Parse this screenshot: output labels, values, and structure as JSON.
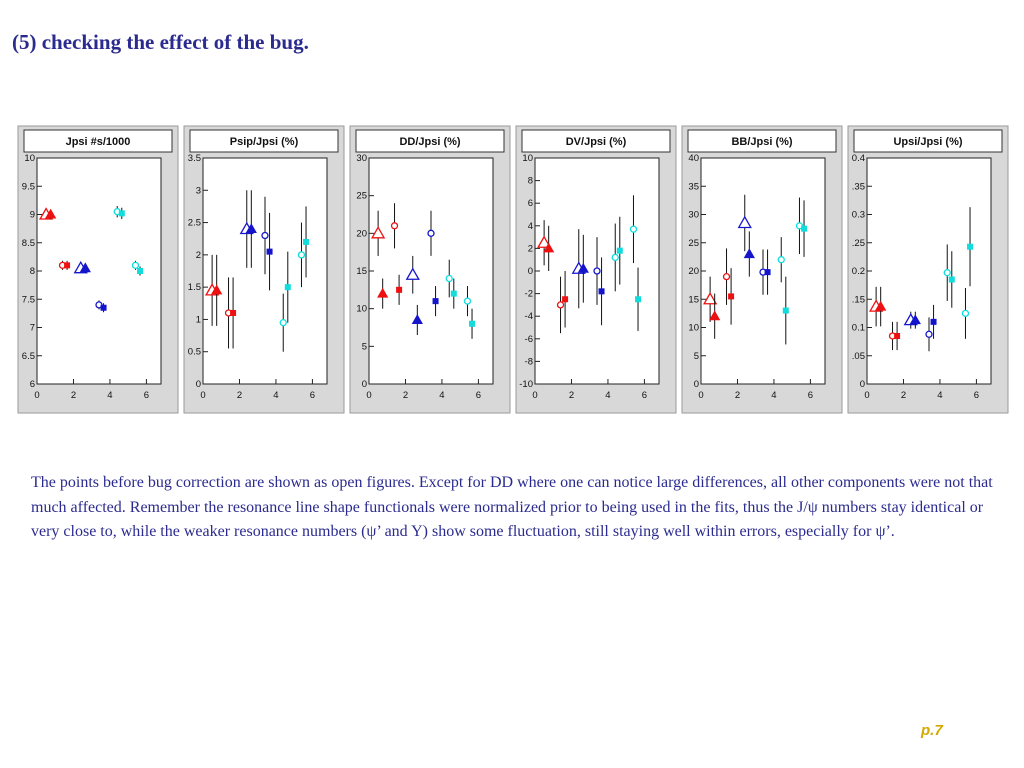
{
  "slide": {
    "title": "(5) checking the effect of the bug.",
    "paragraph": "The points before bug correction are shown as open figures. Except for DD where one can notice large differences, all other components were not that much affected. Remember the resonance line shape functionals were normalized prior to being used in the fits, thus the J/ψ numbers stay identical or very close to, while the weaker resonance numbers (ψ’ and Y) show some fluctuation, still staying well within errors, especially for ψ’.",
    "page_number": "p.7"
  },
  "colors": {
    "text": "#2b2b8f",
    "page_number": "#d4a800",
    "red": "#ee1111",
    "blue": "#1515cc",
    "cyan": "#11dddd",
    "frame_bg": "#d8d8d8"
  },
  "chart_data": [
    {
      "type": "scatter",
      "title": "Jpsi #s/1000",
      "xlim": [
        0,
        6.8
      ],
      "ylim": [
        6,
        10
      ],
      "xticks": [
        "0",
        "2",
        "4",
        "6"
      ],
      "yticks": [
        "6",
        "6.5",
        "7",
        "7.5",
        "8",
        "8.5",
        "9",
        "9.5",
        "10"
      ],
      "ytick_values": [
        6,
        6.5,
        7,
        7.5,
        8,
        8.5,
        9,
        9.5,
        10
      ],
      "points": [
        {
          "x": 0.5,
          "y": 9.0,
          "err": 0.08,
          "color": "red",
          "shape": "triangle",
          "open": true
        },
        {
          "x": 0.75,
          "y": 9.0,
          "err": 0.08,
          "color": "red",
          "shape": "triangle",
          "open": false
        },
        {
          "x": 1.4,
          "y": 8.1,
          "err": 0.08,
          "color": "red",
          "shape": "circle",
          "open": true
        },
        {
          "x": 1.65,
          "y": 8.1,
          "err": 0.08,
          "color": "red",
          "shape": "square",
          "open": false
        },
        {
          "x": 2.4,
          "y": 8.05,
          "err": 0.08,
          "color": "blue",
          "shape": "triangle",
          "open": true
        },
        {
          "x": 2.65,
          "y": 8.05,
          "err": 0.08,
          "color": "blue",
          "shape": "triangle",
          "open": false
        },
        {
          "x": 3.4,
          "y": 7.4,
          "err": 0.08,
          "color": "blue",
          "shape": "circle",
          "open": true
        },
        {
          "x": 3.65,
          "y": 7.35,
          "err": 0.08,
          "color": "blue",
          "shape": "square",
          "open": false
        },
        {
          "x": 4.4,
          "y": 9.05,
          "err": 0.1,
          "color": "cyan",
          "shape": "circle",
          "open": true
        },
        {
          "x": 4.65,
          "y": 9.02,
          "err": 0.1,
          "color": "cyan",
          "shape": "square",
          "open": false
        },
        {
          "x": 5.4,
          "y": 8.1,
          "err": 0.08,
          "color": "cyan",
          "shape": "circle",
          "open": true
        },
        {
          "x": 5.65,
          "y": 8.0,
          "err": 0.08,
          "color": "cyan",
          "shape": "square",
          "open": false
        }
      ]
    },
    {
      "type": "scatter",
      "title": "Psip/Jpsi (%)",
      "xlim": [
        0,
        6.8
      ],
      "ylim": [
        0,
        3.5
      ],
      "xticks": [
        "0",
        "2",
        "4",
        "6"
      ],
      "yticks": [
        "0",
        "0.5",
        "1",
        "1.5",
        "2",
        "2.5",
        "3",
        "3.5"
      ],
      "ytick_values": [
        0,
        0.5,
        1,
        1.5,
        2,
        2.5,
        3,
        3.5
      ],
      "points": [
        {
          "x": 0.5,
          "y": 1.45,
          "err": 0.55,
          "color": "red",
          "shape": "triangle",
          "open": true
        },
        {
          "x": 0.75,
          "y": 1.45,
          "err": 0.55,
          "color": "red",
          "shape": "triangle",
          "open": false
        },
        {
          "x": 1.4,
          "y": 1.1,
          "err": 0.55,
          "color": "red",
          "shape": "circle",
          "open": true
        },
        {
          "x": 1.65,
          "y": 1.1,
          "err": 0.55,
          "color": "red",
          "shape": "square",
          "open": false
        },
        {
          "x": 2.4,
          "y": 2.4,
          "err": 0.6,
          "color": "blue",
          "shape": "triangle",
          "open": true
        },
        {
          "x": 2.65,
          "y": 2.4,
          "err": 0.6,
          "color": "blue",
          "shape": "triangle",
          "open": false
        },
        {
          "x": 3.4,
          "y": 2.3,
          "err": 0.6,
          "color": "blue",
          "shape": "circle",
          "open": true
        },
        {
          "x": 3.65,
          "y": 2.05,
          "err": 0.6,
          "color": "blue",
          "shape": "square",
          "open": false
        },
        {
          "x": 4.4,
          "y": 0.95,
          "err": 0.45,
          "color": "cyan",
          "shape": "circle",
          "open": true
        },
        {
          "x": 4.65,
          "y": 1.5,
          "err": 0.55,
          "color": "cyan",
          "shape": "square",
          "open": false
        },
        {
          "x": 5.4,
          "y": 2.0,
          "err": 0.5,
          "color": "cyan",
          "shape": "circle",
          "open": true
        },
        {
          "x": 5.65,
          "y": 2.2,
          "err": 0.55,
          "color": "cyan",
          "shape": "square",
          "open": false
        }
      ]
    },
    {
      "type": "scatter",
      "title": "DD/Jpsi (%)",
      "xlim": [
        0,
        6.8
      ],
      "ylim": [
        0,
        30
      ],
      "xticks": [
        "0",
        "2",
        "4",
        "6"
      ],
      "yticks": [
        "0",
        "5",
        "10",
        "15",
        "20",
        "25",
        "30"
      ],
      "ytick_values": [
        0,
        5,
        10,
        15,
        20,
        25,
        30
      ],
      "points": [
        {
          "x": 0.5,
          "y": 20.0,
          "err": 3.0,
          "color": "red",
          "shape": "triangle",
          "open": true
        },
        {
          "x": 0.75,
          "y": 12.0,
          "err": 2.0,
          "color": "red",
          "shape": "triangle",
          "open": false
        },
        {
          "x": 1.4,
          "y": 21.0,
          "err": 3.0,
          "color": "red",
          "shape": "circle",
          "open": true
        },
        {
          "x": 1.65,
          "y": 12.5,
          "err": 2.0,
          "color": "red",
          "shape": "square",
          "open": false
        },
        {
          "x": 2.4,
          "y": 14.5,
          "err": 2.5,
          "color": "blue",
          "shape": "triangle",
          "open": true
        },
        {
          "x": 2.65,
          "y": 8.5,
          "err": 2.0,
          "color": "blue",
          "shape": "triangle",
          "open": false
        },
        {
          "x": 3.4,
          "y": 20.0,
          "err": 3.0,
          "color": "blue",
          "shape": "circle",
          "open": true
        },
        {
          "x": 3.65,
          "y": 11.0,
          "err": 2.0,
          "color": "blue",
          "shape": "square",
          "open": false
        },
        {
          "x": 4.4,
          "y": 14.0,
          "err": 2.5,
          "color": "cyan",
          "shape": "circle",
          "open": true
        },
        {
          "x": 4.65,
          "y": 12.0,
          "err": 2.0,
          "color": "cyan",
          "shape": "square",
          "open": false
        },
        {
          "x": 5.4,
          "y": 11.0,
          "err": 2.0,
          "color": "cyan",
          "shape": "circle",
          "open": true
        },
        {
          "x": 5.65,
          "y": 8.0,
          "err": 2.0,
          "color": "cyan",
          "shape": "square",
          "open": false
        }
      ]
    },
    {
      "type": "scatter",
      "title": "DV/Jpsi (%)",
      "xlim": [
        0,
        6.8
      ],
      "ylim": [
        -10,
        10
      ],
      "xticks": [
        "0",
        "2",
        "4",
        "6"
      ],
      "yticks": [
        "-10",
        "-8",
        "-6",
        "-4",
        "-2",
        "0",
        "2",
        "4",
        "6",
        "8",
        "10"
      ],
      "ytick_values": [
        -10,
        -8,
        -6,
        -4,
        -2,
        0,
        2,
        4,
        6,
        8,
        10
      ],
      "points": [
        {
          "x": 0.5,
          "y": 2.5,
          "err": 2.0,
          "color": "red",
          "shape": "triangle",
          "open": true
        },
        {
          "x": 0.75,
          "y": 2.0,
          "err": 2.0,
          "color": "red",
          "shape": "triangle",
          "open": false
        },
        {
          "x": 1.4,
          "y": -3.0,
          "err": 2.5,
          "color": "red",
          "shape": "circle",
          "open": true
        },
        {
          "x": 1.65,
          "y": -2.5,
          "err": 2.5,
          "color": "red",
          "shape": "square",
          "open": false
        },
        {
          "x": 2.4,
          "y": 0.2,
          "err": 3.5,
          "color": "blue",
          "shape": "triangle",
          "open": true
        },
        {
          "x": 2.65,
          "y": 0.2,
          "err": 3.0,
          "color": "blue",
          "shape": "triangle",
          "open": false
        },
        {
          "x": 3.4,
          "y": 0.0,
          "err": 3.0,
          "color": "blue",
          "shape": "circle",
          "open": true
        },
        {
          "x": 3.65,
          "y": -1.8,
          "err": 3.0,
          "color": "blue",
          "shape": "square",
          "open": false
        },
        {
          "x": 4.4,
          "y": 1.2,
          "err": 3.0,
          "color": "cyan",
          "shape": "circle",
          "open": true
        },
        {
          "x": 4.65,
          "y": 1.8,
          "err": 3.0,
          "color": "cyan",
          "shape": "square",
          "open": false
        },
        {
          "x": 5.4,
          "y": 3.7,
          "err": 3.0,
          "color": "cyan",
          "shape": "circle",
          "open": true
        },
        {
          "x": 5.65,
          "y": -2.5,
          "err": 2.8,
          "color": "cyan",
          "shape": "square",
          "open": false
        }
      ]
    },
    {
      "type": "scatter",
      "title": "BB/Jpsi (%)",
      "xlim": [
        0,
        6.8
      ],
      "ylim": [
        0,
        40
      ],
      "xticks": [
        "0",
        "2",
        "4",
        "6"
      ],
      "yticks": [
        "0",
        "5",
        "10",
        "15",
        "20",
        "25",
        "30",
        "35",
        "40"
      ],
      "ytick_values": [
        0,
        5,
        10,
        15,
        20,
        25,
        30,
        35,
        40
      ],
      "points": [
        {
          "x": 0.5,
          "y": 15.0,
          "err": 4.0,
          "color": "red",
          "shape": "triangle",
          "open": true
        },
        {
          "x": 0.75,
          "y": 12.0,
          "err": 4.0,
          "color": "red",
          "shape": "triangle",
          "open": false
        },
        {
          "x": 1.4,
          "y": 19.0,
          "err": 5.0,
          "color": "red",
          "shape": "circle",
          "open": true
        },
        {
          "x": 1.65,
          "y": 15.5,
          "err": 5.0,
          "color": "red",
          "shape": "square",
          "open": false
        },
        {
          "x": 2.4,
          "y": 28.5,
          "err": 5.0,
          "color": "blue",
          "shape": "triangle",
          "open": true
        },
        {
          "x": 2.65,
          "y": 23.0,
          "err": 4.0,
          "color": "blue",
          "shape": "triangle",
          "open": false
        },
        {
          "x": 3.4,
          "y": 19.8,
          "err": 4.0,
          "color": "blue",
          "shape": "circle",
          "open": true
        },
        {
          "x": 3.65,
          "y": 19.8,
          "err": 4.0,
          "color": "blue",
          "shape": "square",
          "open": false
        },
        {
          "x": 4.4,
          "y": 22.0,
          "err": 4.0,
          "color": "cyan",
          "shape": "circle",
          "open": true
        },
        {
          "x": 4.65,
          "y": 13.0,
          "err": 6.0,
          "color": "cyan",
          "shape": "square",
          "open": false
        },
        {
          "x": 5.4,
          "y": 28.0,
          "err": 5.0,
          "color": "cyan",
          "shape": "circle",
          "open": true
        },
        {
          "x": 5.65,
          "y": 27.5,
          "err": 5.0,
          "color": "cyan",
          "shape": "square",
          "open": false
        }
      ]
    },
    {
      "type": "scatter",
      "title": "Upsi/Jpsi (%)",
      "xlim": [
        0,
        6.8
      ],
      "ylim": [
        0,
        0.4
      ],
      "xticks": [
        "0",
        "2",
        "4",
        "6"
      ],
      "yticks": [
        "0",
        ".05",
        "0.1",
        ".15",
        "0.2",
        ".25",
        "0.3",
        ".35",
        "0.4"
      ],
      "ytick_values": [
        0,
        0.05,
        0.1,
        0.15,
        0.2,
        0.25,
        0.3,
        0.35,
        0.4
      ],
      "points": [
        {
          "x": 0.5,
          "y": 0.137,
          "err": 0.035,
          "color": "red",
          "shape": "triangle",
          "open": true
        },
        {
          "x": 0.75,
          "y": 0.137,
          "err": 0.035,
          "color": "red",
          "shape": "triangle",
          "open": false
        },
        {
          "x": 1.4,
          "y": 0.085,
          "err": 0.025,
          "color": "red",
          "shape": "circle",
          "open": true
        },
        {
          "x": 1.65,
          "y": 0.085,
          "err": 0.025,
          "color": "red",
          "shape": "square",
          "open": false
        },
        {
          "x": 2.4,
          "y": 0.113,
          "err": 0.015,
          "color": "blue",
          "shape": "triangle",
          "open": true
        },
        {
          "x": 2.65,
          "y": 0.113,
          "err": 0.015,
          "color": "blue",
          "shape": "triangle",
          "open": false
        },
        {
          "x": 3.4,
          "y": 0.088,
          "err": 0.03,
          "color": "blue",
          "shape": "circle",
          "open": true
        },
        {
          "x": 3.65,
          "y": 0.11,
          "err": 0.03,
          "color": "blue",
          "shape": "square",
          "open": false
        },
        {
          "x": 4.4,
          "y": 0.197,
          "err": 0.05,
          "color": "cyan",
          "shape": "circle",
          "open": true
        },
        {
          "x": 4.65,
          "y": 0.185,
          "err": 0.05,
          "color": "cyan",
          "shape": "square",
          "open": false
        },
        {
          "x": 5.4,
          "y": 0.125,
          "err": 0.045,
          "color": "cyan",
          "shape": "circle",
          "open": true
        },
        {
          "x": 5.65,
          "y": 0.243,
          "err": 0.07,
          "color": "cyan",
          "shape": "square",
          "open": false
        }
      ]
    }
  ]
}
